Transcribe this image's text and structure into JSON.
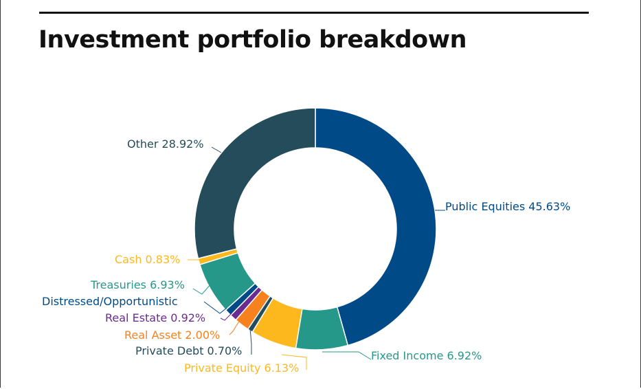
{
  "page": {
    "title": "Investment portfolio breakdown"
  },
  "chart_data": {
    "type": "pie",
    "style": "donut",
    "title": "Investment portfolio breakdown",
    "order": "clockwise from 12 o'clock",
    "slices": [
      {
        "label": "Public Equities",
        "value": 45.63,
        "display": "Public Equities 45.63%",
        "color": "#004a87"
      },
      {
        "label": "Fixed Income",
        "value": 6.92,
        "display": "Fixed Income 6.92%",
        "color": "#26988a"
      },
      {
        "label": "Private Equity",
        "value": 6.13,
        "display": "Private Equity 6.13%",
        "color": "#fdb81e"
      },
      {
        "label": "Private Debt",
        "value": 0.7,
        "display": "Private Debt 0.70%",
        "color": "#214d5c"
      },
      {
        "label": "Real Asset",
        "value": 2.0,
        "display": "Real Asset 2.00%",
        "color": "#f5821f"
      },
      {
        "label": "Real Estate",
        "value": 0.92,
        "display": "Real Estate 0.92%",
        "color": "#6b2c91"
      },
      {
        "label": "Distressed/Opportunistic",
        "value": 0.94,
        "display": "Distressed/Opportunistic",
        "color": "#004a87"
      },
      {
        "label": "Treasuries",
        "value": 6.93,
        "display": "Treasuries 6.93%",
        "color": "#26988a"
      },
      {
        "label": "Cash",
        "value": 0.83,
        "display": "Cash 0.83%",
        "color": "#fdb81e"
      },
      {
        "label": "Other",
        "value": 28.92,
        "display": "Other 28.92%",
        "color": "#244c5a"
      }
    ],
    "label_colors": {
      "Public Equities": "#004a87",
      "Fixed Income": "#26988a",
      "Private Equity": "#fdb81e",
      "Private Debt": "#244c5a",
      "Real Asset": "#f5821f",
      "Real Estate": "#6b2c91",
      "Distressed/Opportunistic": "#004a87",
      "Treasuries": "#26988a",
      "Cash": "#fdb81e",
      "Other": "#244c5a"
    }
  }
}
